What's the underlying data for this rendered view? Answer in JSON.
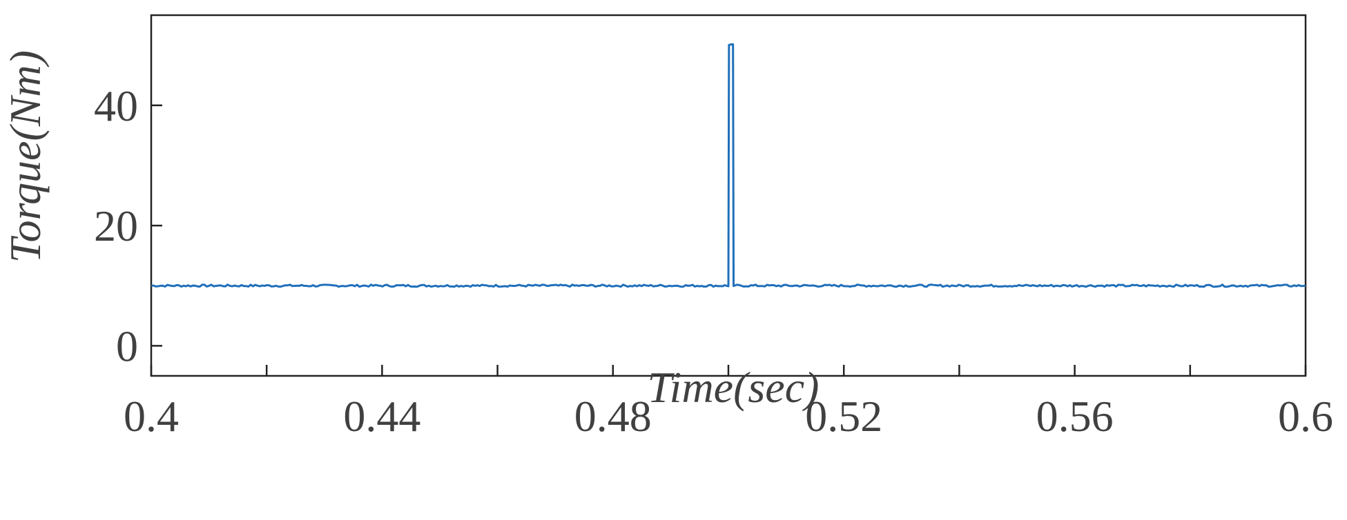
{
  "chart_data": {
    "type": "line",
    "title": "",
    "xlabel": "Time(sec)",
    "ylabel": "Torque(Nm)",
    "xlim": [
      0.4,
      0.6
    ],
    "ylim": [
      -5,
      55
    ],
    "x_ticks": [
      0.4,
      0.44,
      0.48,
      0.52,
      0.56,
      0.6
    ],
    "x_tick_labels": [
      "0.4",
      "0.44",
      "0.48",
      "0.52",
      "0.56",
      "0.6"
    ],
    "x_minor_ticks": [
      0.42,
      0.46,
      0.5,
      0.54,
      0.58
    ],
    "y_ticks": [
      0,
      20,
      40
    ],
    "y_tick_labels": [
      "0",
      "20",
      "40"
    ],
    "grid": false,
    "legend": "none",
    "series": [
      {
        "color": "#1f6fba",
        "x": [
          0.4,
          0.499,
          0.5,
          0.5001,
          0.5008,
          0.5009,
          0.5015,
          0.6
        ],
        "y": [
          10,
          10,
          10,
          50,
          50,
          10,
          10,
          10
        ]
      }
    ]
  }
}
